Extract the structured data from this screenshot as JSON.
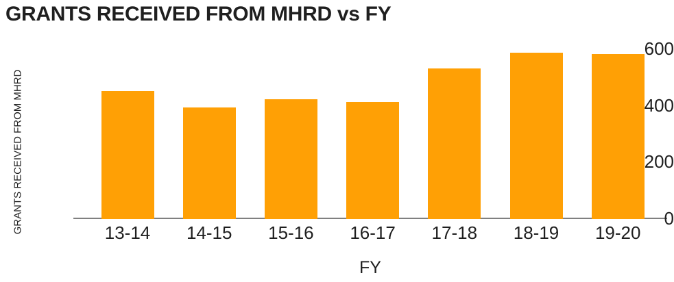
{
  "colors": {
    "bar": "#FFA005",
    "axis_line": "#808080",
    "text": "#1F1F1F",
    "background": "#FFFFFF"
  },
  "chart_data": {
    "type": "bar",
    "title": "GRANTS RECEIVED FROM MHRD vs FY",
    "xlabel": "FY",
    "ylabel": "GRANTS RECEIVED FROM MHRD",
    "categories": [
      "13-14",
      "14-15",
      "15-16",
      "16-17",
      "17-18",
      "18-19",
      "19-20"
    ],
    "values": [
      450,
      393,
      422,
      411,
      530,
      585,
      580
    ],
    "yticks": [
      0,
      200,
      400,
      600
    ],
    "ylim": [
      0,
      600
    ],
    "grid": false,
    "legend": false,
    "bar_color": "#FFA005"
  }
}
